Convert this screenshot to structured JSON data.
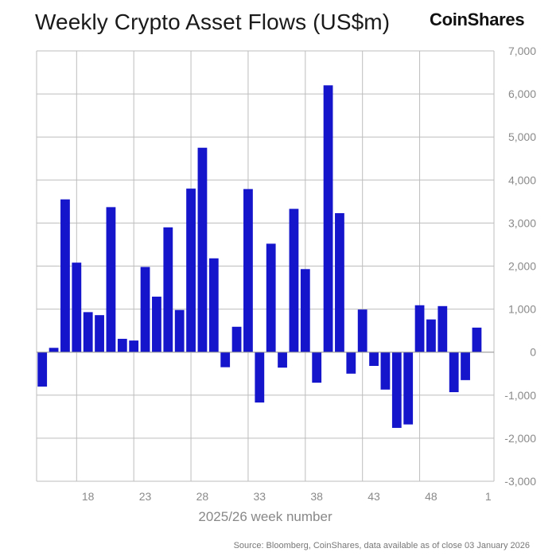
{
  "header": {
    "title": "Weekly Crypto Asset Flows (US$m)",
    "brand": "CoinShares"
  },
  "footer": {
    "source": "Source: Bloomberg, CoinShares, data available as of close 03 January 2026"
  },
  "chart_data": {
    "type": "bar",
    "title": "Weekly Crypto Asset Flows (US$m)",
    "xlabel": "2025/26 week number",
    "ylabel": "",
    "ylim": [
      -3000,
      7000
    ],
    "yticks": [
      7000,
      6000,
      5000,
      4000,
      3000,
      2000,
      1000,
      0,
      -1000,
      -2000,
      -3000
    ],
    "ytick_labels": [
      "7,000",
      "6,000",
      "5,000",
      "4,000",
      "3,000",
      "2,000",
      "1,000",
      "0",
      "-1,000",
      "-2,000",
      "-3,000"
    ],
    "categories": [
      "14",
      "15",
      "16",
      "17",
      "18",
      "19",
      "20",
      "21",
      "22",
      "23",
      "24",
      "25",
      "26",
      "27",
      "28",
      "29",
      "30",
      "31",
      "32",
      "33",
      "34",
      "35",
      "36",
      "37",
      "38",
      "39",
      "40",
      "41",
      "42",
      "43",
      "44",
      "45",
      "46",
      "47",
      "48",
      "49",
      "50",
      "51",
      "52",
      "1"
    ],
    "values": [
      -800,
      100,
      3550,
      2080,
      930,
      860,
      3370,
      310,
      270,
      1980,
      1290,
      2900,
      980,
      3800,
      4750,
      2180,
      -350,
      590,
      3790,
      -1170,
      2520,
      -360,
      3330,
      1930,
      -710,
      6200,
      3230,
      -500,
      990,
      -320,
      -870,
      -1760,
      -1680,
      1090,
      760,
      1070,
      -930,
      -650,
      570,
      0
    ],
    "xtick_labels": [
      "18",
      "23",
      "28",
      "33",
      "38",
      "43",
      "48",
      "1"
    ],
    "xtick_indices": [
      4,
      9,
      14,
      19,
      24,
      29,
      34,
      39
    ],
    "grid": true,
    "bar_color": "#1515cc",
    "grid_color": "#bdbdbd"
  }
}
